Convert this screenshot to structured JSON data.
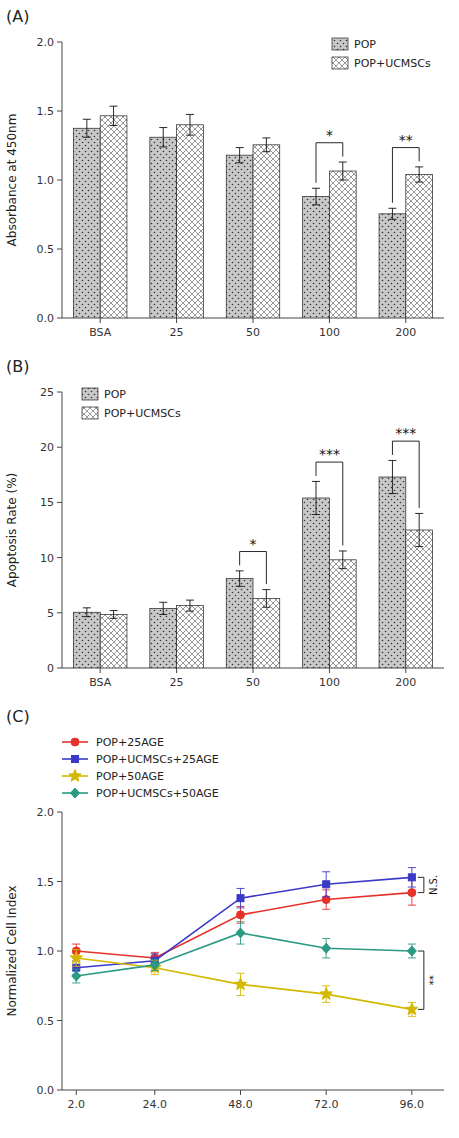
{
  "chart_data": [
    {
      "type": "bar",
      "title": "(A)",
      "categories": [
        "BSA",
        "25",
        "50",
        "100",
        "200"
      ],
      "series": [
        {
          "name": "POP",
          "color": "#c8c8c8",
          "values": [
            1.375,
            1.31,
            1.18,
            0.88,
            0.755
          ],
          "errors": [
            0.065,
            0.07,
            0.055,
            0.06,
            0.04
          ]
        },
        {
          "name": "POP+UCMSCs",
          "color": "#ffffff",
          "values": [
            1.465,
            1.4,
            1.255,
            1.065,
            1.04
          ],
          "errors": [
            0.07,
            0.075,
            0.05,
            0.065,
            0.055
          ]
        }
      ],
      "ylabel": "Absorbance at 450nm",
      "ylim": [
        0,
        2.0
      ],
      "yticks": [
        {
          "value": 0,
          "label": "0.0"
        },
        0.5,
        {
          "value": 1,
          "label": "1.0"
        },
        1.5,
        {
          "value": 2,
          "label": "2.0"
        }
      ],
      "annotations": [
        {
          "text": "*",
          "category": "100"
        },
        {
          "text": "**",
          "category": "200"
        }
      ],
      "legend": "upper right",
      "grid": false
    },
    {
      "type": "bar",
      "title": "(B)",
      "categories": [
        "BSA",
        "25",
        "50",
        "100",
        "200"
      ],
      "series": [
        {
          "name": "POP",
          "color": "#c8c8c8",
          "values": [
            5.05,
            5.4,
            8.1,
            15.4,
            17.3
          ],
          "errors": [
            0.4,
            0.55,
            0.7,
            1.5,
            1.5
          ]
        },
        {
          "name": "POP+UCMSCs",
          "color": "#ffffff",
          "values": [
            4.85,
            5.65,
            6.3,
            9.8,
            12.5
          ],
          "errors": [
            0.35,
            0.5,
            0.8,
            0.8,
            1.5
          ]
        }
      ],
      "ylabel": "Apoptosis Rate (%)",
      "ylim": [
        0,
        25
      ],
      "yticks": [
        0,
        5,
        10,
        15,
        20,
        25
      ],
      "annotations": [
        {
          "text": "*",
          "category": "50"
        },
        {
          "text": "***",
          "category": "100"
        },
        {
          "text": "***",
          "category": "200"
        }
      ],
      "legend": "upper left",
      "grid": false
    },
    {
      "type": "line",
      "title": "(C)",
      "x": [
        2,
        24,
        48,
        72,
        96
      ],
      "xlim": [
        -2,
        105
      ],
      "xticks": [
        {
          "value": 2,
          "label": "2.0"
        },
        {
          "value": 24,
          "label": "24.0"
        },
        {
          "value": 48,
          "label": "48.0"
        },
        {
          "value": 72,
          "label": "72.0"
        },
        {
          "value": 96,
          "label": "96.0"
        }
      ],
      "series": [
        {
          "name": "POP+25AGE",
          "color": "#e8312a",
          "marker": "circle",
          "values": [
            1.0,
            0.95,
            1.26,
            1.37,
            1.42
          ],
          "errors": [
            0.05,
            0.04,
            0.06,
            0.07,
            0.09
          ]
        },
        {
          "name": "POP+UCMSCs+25AGE",
          "color": "#3a3ac8",
          "marker": "square",
          "values": [
            0.88,
            0.93,
            1.38,
            1.48,
            1.53
          ],
          "errors": [
            0.05,
            0.05,
            0.07,
            0.09,
            0.07
          ]
        },
        {
          "name": "POP+50AGE",
          "color": "#d4b800",
          "marker": "star",
          "values": [
            0.95,
            0.88,
            0.76,
            0.69,
            0.58
          ],
          "errors": [
            0.06,
            0.05,
            0.08,
            0.06,
            0.05
          ]
        },
        {
          "name": "POP+UCMSCs+50AGE",
          "color": "#2a9a82",
          "marker": "diamond",
          "values": [
            0.82,
            0.9,
            1.13,
            1.02,
            1.0
          ],
          "errors": [
            0.05,
            0.04,
            0.08,
            0.07,
            0.05
          ]
        }
      ],
      "ylabel": "Normalized Cell Index",
      "ylim": [
        0.0,
        2.0
      ],
      "yticks": [
        {
          "value": 0,
          "label": "0.0"
        },
        0.5,
        {
          "value": 1,
          "label": "1.0"
        },
        1.5,
        {
          "value": 2,
          "label": "2.0"
        }
      ],
      "annotations": [
        {
          "text": "N.S.",
          "between": [
            "POP+25AGE",
            "POP+UCMSCs+25AGE"
          ]
        },
        {
          "text": "**",
          "between": [
            "POP+50AGE",
            "POP+UCMSCs+50AGE"
          ]
        }
      ],
      "legend": "above",
      "grid": false
    }
  ]
}
